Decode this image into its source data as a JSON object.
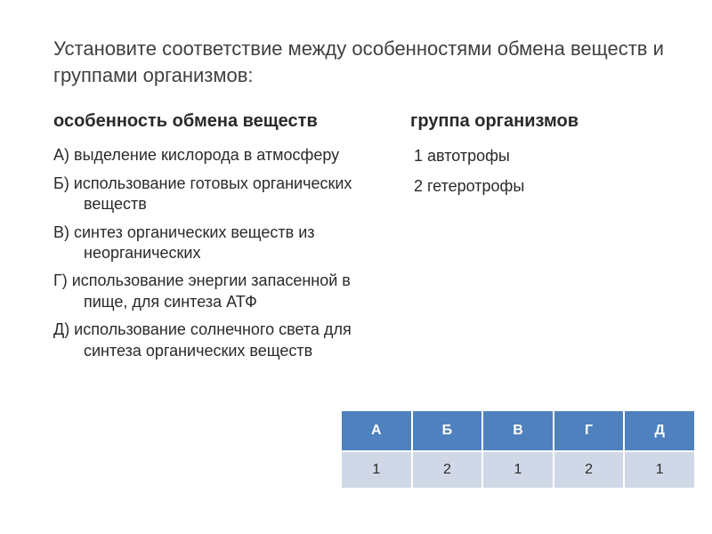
{
  "title": "Установите соответствие между особенностями обмена веществ и группами организмов:",
  "left": {
    "heading": "особенность обмена веществ",
    "items": [
      "А) выделение кислорода в атмосферу",
      "Б) использование готовых органических веществ",
      "В) синтез органических веществ из неорганических",
      "Г) использование энергии запасенной в пище, для синтеза АТФ",
      "Д) использование солнечного света для синтеза органических веществ"
    ]
  },
  "right": {
    "heading": "группа организмов",
    "items": [
      "1 автотрофы",
      "2 гетеротрофы"
    ]
  },
  "table": {
    "headers": [
      "А",
      "Б",
      "В",
      "Г",
      "Д"
    ],
    "row": [
      "1",
      "2",
      "1",
      "2",
      "1"
    ],
    "header_bg": "#4e81bd",
    "header_fg": "#ffffff",
    "cell_bg": "#d0d8e7",
    "cell_fg": "#2a2a2a"
  }
}
